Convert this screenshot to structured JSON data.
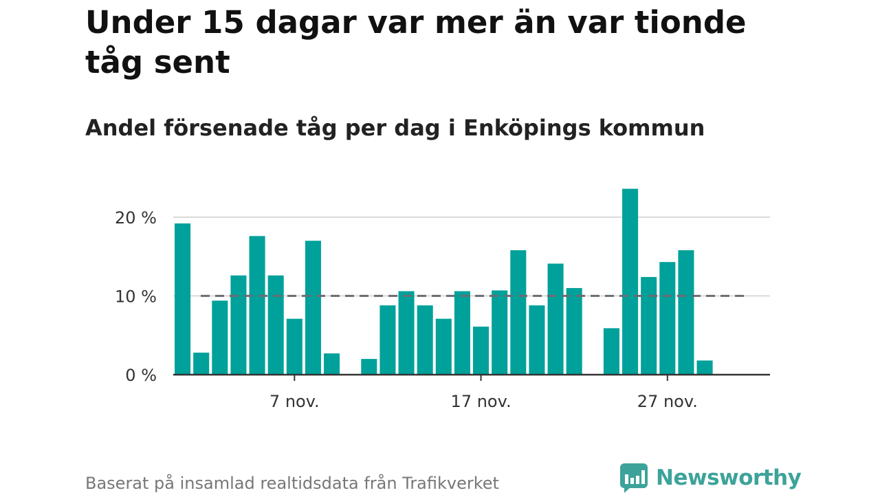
{
  "title": "Under 15 dagar var mer än var tionde tåg sent",
  "subtitle": "Andel försenade tåg per dag i Enköpings kommun",
  "footer": "Baserat på insamlad realtidsdata från Trafikverket",
  "brand": {
    "name": "Newsworthy",
    "icon": "newsworthy-logo-icon",
    "color": "#3da39a"
  },
  "chart_data": {
    "type": "bar",
    "x": [
      1,
      2,
      3,
      4,
      5,
      6,
      7,
      8,
      9,
      10,
      11,
      12,
      13,
      14,
      15,
      16,
      17,
      18,
      19,
      20,
      21,
      22,
      23,
      24,
      25,
      26,
      27,
      28,
      29,
      30
    ],
    "values": [
      19.2,
      2.8,
      9.4,
      12.6,
      17.6,
      12.6,
      7.1,
      17.0,
      2.7,
      null,
      2.0,
      8.8,
      10.6,
      8.8,
      7.1,
      10.6,
      6.1,
      10.7,
      15.8,
      8.8,
      14.1,
      11.0,
      null,
      5.9,
      23.6,
      12.4,
      14.3,
      15.8,
      1.8,
      null
    ],
    "ylim": [
      0,
      24
    ],
    "xlim": [
      0.5,
      32.5
    ],
    "yticks": [
      {
        "value": 0,
        "label": "0 %"
      },
      {
        "value": 10,
        "label": "10 %"
      },
      {
        "value": 20,
        "label": "20 %"
      }
    ],
    "xticks": [
      {
        "value": 7,
        "label": "7 nov."
      },
      {
        "value": 17,
        "label": "17 nov."
      },
      {
        "value": 27,
        "label": "27 nov."
      }
    ],
    "reference_line": {
      "value": 10,
      "style": "dashed",
      "color": "#6b6b73"
    },
    "bar_color": "#00a19a",
    "grid": true,
    "legend": "none"
  }
}
